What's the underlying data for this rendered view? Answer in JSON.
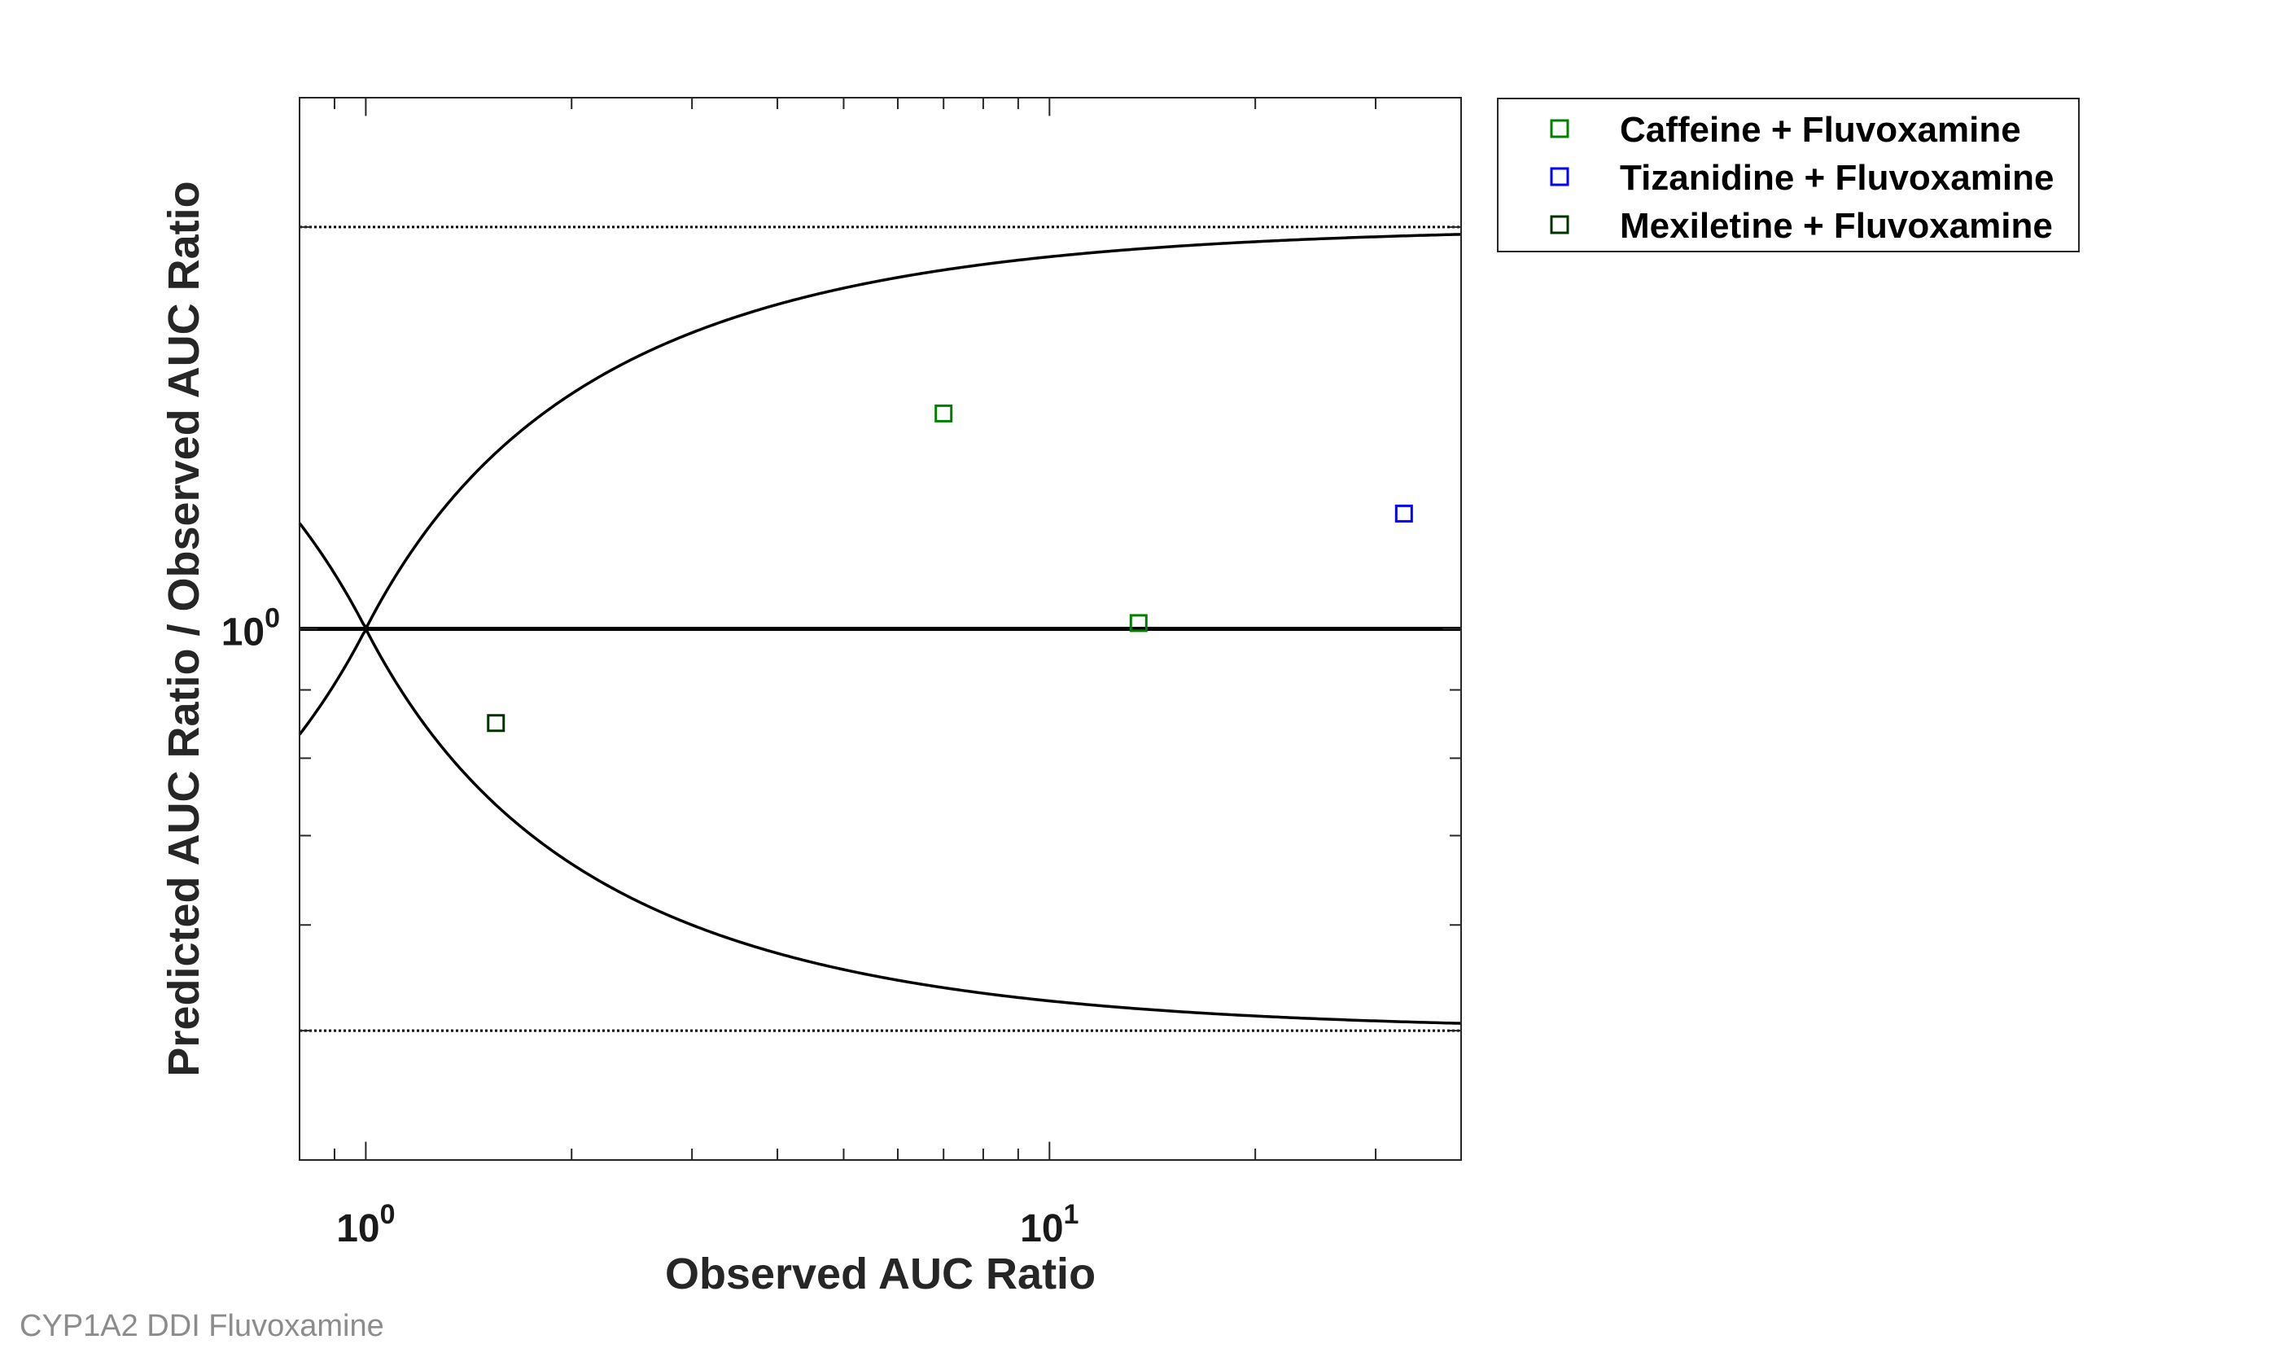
{
  "caption": "CYP1A2 DDI Fluvoxamine",
  "chart_data": {
    "type": "scatter",
    "title": "",
    "xlabel": "Observed AUC Ratio",
    "ylabel": "Predicted AUC Ratio / Observed AUC Ratio",
    "x_scale": "log",
    "y_scale": "log",
    "xlim": [
      0.8,
      40
    ],
    "ylim": [
      0.4,
      2.5
    ],
    "x_ticks": [
      {
        "value": 1,
        "base": "10",
        "exp": "0"
      },
      {
        "value": 10,
        "base": "10",
        "exp": "1"
      }
    ],
    "y_ticks": [
      {
        "value": 1,
        "base": "10",
        "exp": "0"
      }
    ],
    "grid": false,
    "legend_position": "outside-top-right",
    "reference_lines": [
      {
        "kind": "identity",
        "y": 1,
        "style": "solid-thick"
      },
      {
        "kind": "upper-fixed",
        "y": 2,
        "style": "dotted"
      },
      {
        "kind": "lower-fixed",
        "y": 0.5,
        "style": "dotted"
      },
      {
        "kind": "upper-guest-limit",
        "style": "solid"
      },
      {
        "kind": "lower-guest-limit",
        "style": "solid"
      }
    ],
    "series": [
      {
        "name": "Caffeine + Fluvoxamine",
        "color": "#008000",
        "marker": "square",
        "points": [
          {
            "x": 7.0,
            "y": 1.45
          },
          {
            "x": 13.5,
            "y": 1.01
          }
        ]
      },
      {
        "name": "Tizanidine + Fluvoxamine",
        "color": "#0000ff",
        "marker": "square",
        "points": [
          {
            "x": 33.0,
            "y": 1.22
          }
        ]
      },
      {
        "name": "Mexiletine + Fluvoxamine",
        "color": "#003300",
        "marker": "square",
        "points": [
          {
            "x": 1.55,
            "y": 0.85
          }
        ]
      }
    ]
  }
}
